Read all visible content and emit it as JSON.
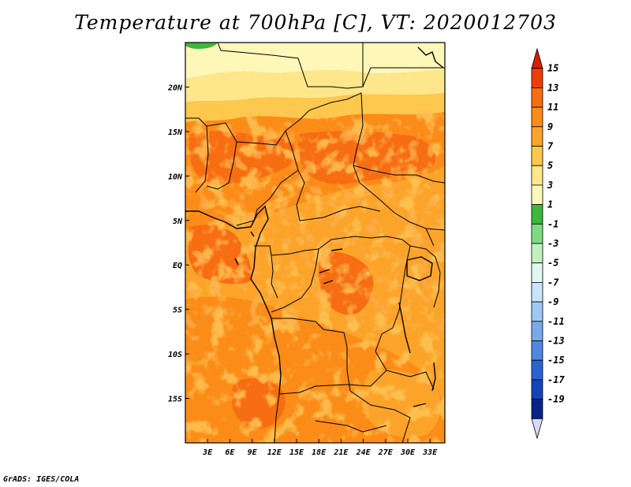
{
  "title": "Temperature at 700hPa [C], VT: 2020012703",
  "footer": "GrADS: IGES/COLA",
  "map": {
    "lon_range": [
      0,
      35
    ],
    "lat_range": [
      -20,
      25
    ],
    "lon_ticks": [
      {
        "value": 3,
        "label": "3E"
      },
      {
        "value": 6,
        "label": "6E"
      },
      {
        "value": 9,
        "label": "9E"
      },
      {
        "value": 12,
        "label": "12E"
      },
      {
        "value": 15,
        "label": "15E"
      },
      {
        "value": 18,
        "label": "18E"
      },
      {
        "value": 21,
        "label": "21E"
      },
      {
        "value": 24,
        "label": "24E"
      },
      {
        "value": 27,
        "label": "27E"
      },
      {
        "value": 30,
        "label": "30E"
      },
      {
        "value": 33,
        "label": "33E"
      }
    ],
    "lat_ticks": [
      {
        "value": 20,
        "label": "20N"
      },
      {
        "value": 15,
        "label": "15N"
      },
      {
        "value": 10,
        "label": "10N"
      },
      {
        "value": 5,
        "label": "5N"
      },
      {
        "value": 0,
        "label": "EQ"
      },
      {
        "value": -5,
        "label": "5S"
      },
      {
        "value": -10,
        "label": "10S"
      },
      {
        "value": -15,
        "label": "15S"
      }
    ]
  },
  "colorbar": {
    "levels": [
      "15",
      "13",
      "11",
      "9",
      "7",
      "5",
      "3",
      "1",
      "-1",
      "-3",
      "-5",
      "-7",
      "-9",
      "-11",
      "-13",
      "-15",
      "-17",
      "-19"
    ],
    "colors": [
      "#d81e05",
      "#f03c0a",
      "#f76d12",
      "#fb8c18",
      "#fca32a",
      "#fdc84e",
      "#fde78a",
      "#fdf7b8",
      "#3cb83c",
      "#7fdb7f",
      "#bff2bf",
      "#e0f8f0",
      "#c8e4fa",
      "#a0c8f2",
      "#78aaea",
      "#5088e0",
      "#2a64d2",
      "#1444b8",
      "#0a2288",
      "#d8d8f8"
    ]
  }
}
